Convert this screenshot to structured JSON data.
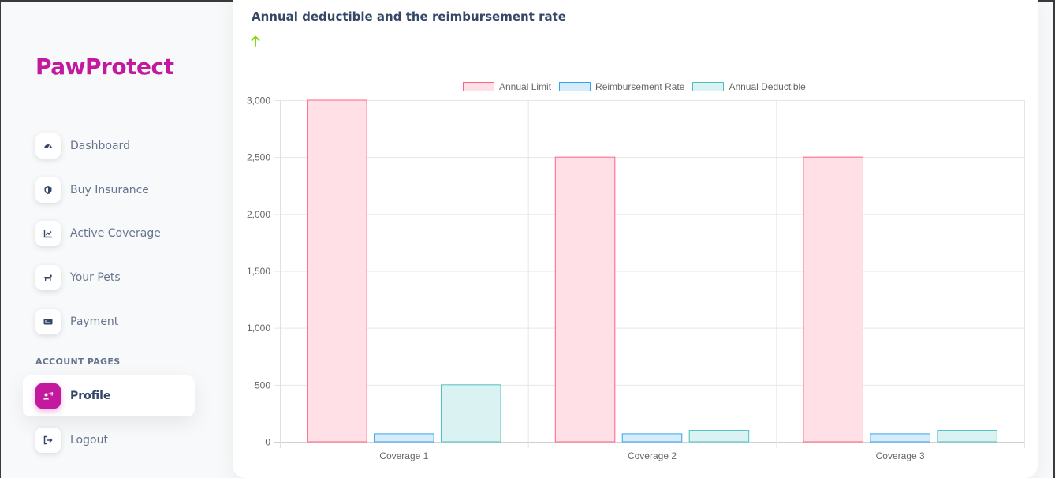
{
  "brand": "PawProtect",
  "sidebar": {
    "items": [
      {
        "label": "Dashboard",
        "icon": "dashboard-gauge-icon"
      },
      {
        "label": "Buy Insurance",
        "icon": "shield-icon"
      },
      {
        "label": "Active Coverage",
        "icon": "line-chart-icon"
      },
      {
        "label": "Your Pets",
        "icon": "dog-icon"
      },
      {
        "label": "Payment",
        "icon": "credit-card-icon"
      }
    ],
    "section_heading": "ACCOUNT PAGES",
    "account_items": [
      {
        "label": "Profile",
        "icon": "user-add-icon",
        "active": true
      },
      {
        "label": "Logout",
        "icon": "logout-icon"
      }
    ]
  },
  "card": {
    "title": "Annual deductible and the reimbursement rate",
    "trend_icon": "arrow-up-icon"
  },
  "colors": {
    "brand": "#c2199e",
    "trend": "#82d616",
    "annual_limit_fill": "#ffe0e6",
    "annual_limit_border": "#ff6384",
    "reimbursement_fill": "#d7ecfb",
    "reimbursement_border": "#36a2eb",
    "deductible_fill": "#dbf2f2",
    "deductible_border": "#4bc0c0"
  },
  "chart_data": {
    "type": "bar",
    "categories": [
      "Coverage 1",
      "Coverage 2",
      "Coverage 3"
    ],
    "series": [
      {
        "name": "Annual Limit",
        "values": [
          3000,
          2500,
          2500
        ]
      },
      {
        "name": "Reimbursement Rate",
        "values": [
          70,
          70,
          70
        ]
      },
      {
        "name": "Annual Deductible",
        "values": [
          500,
          100,
          100
        ]
      }
    ],
    "ylim": [
      0,
      3000
    ],
    "yticks": [
      0,
      500,
      1000,
      1500,
      2000,
      2500,
      3000
    ],
    "ytick_labels": [
      "0",
      "500",
      "1,000",
      "1,500",
      "2,000",
      "2,500",
      "3,000"
    ],
    "legend_position": "top-center",
    "grid": true
  }
}
